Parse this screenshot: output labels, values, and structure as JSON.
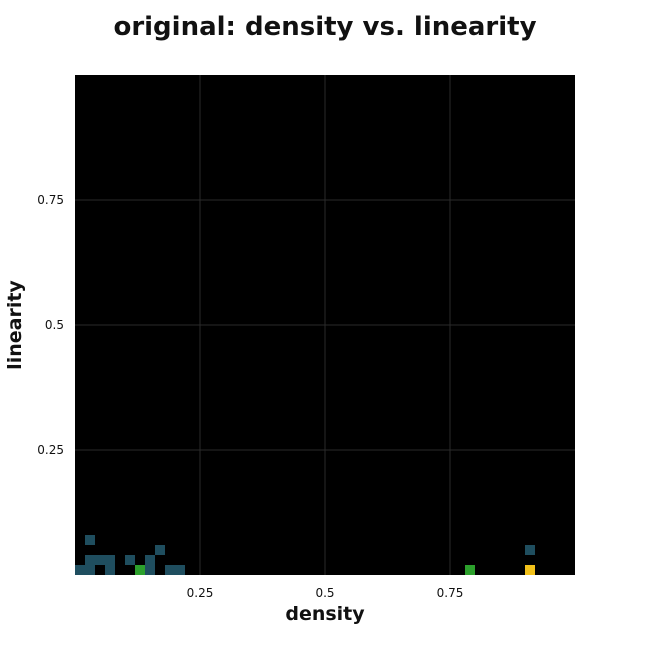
{
  "chart_data": {
    "type": "heatmap",
    "title": "original: density vs. linearity",
    "xlabel": "density",
    "ylabel": "linearity",
    "xlim": [
      0,
      1
    ],
    "ylim": [
      0,
      1
    ],
    "xticks": [
      0.25,
      0.5,
      0.75
    ],
    "xtick_labels": [
      "0.25",
      "0.5",
      "0.75"
    ],
    "yticks": [
      0.25,
      0.5,
      0.75
    ],
    "ytick_labels": [
      "0.25",
      "0.5",
      "0.75"
    ],
    "grid": true,
    "background": "#000000",
    "bin_size": 0.02,
    "colors": {
      "low": "#1f4e5f",
      "mid": "#2ca02c",
      "high": "#f2c11a"
    },
    "cells": [
      {
        "x": 0.0,
        "y": 0.0,
        "level": "low"
      },
      {
        "x": 0.02,
        "y": 0.0,
        "level": "low"
      },
      {
        "x": 0.02,
        "y": 0.02,
        "level": "low"
      },
      {
        "x": 0.02,
        "y": 0.06,
        "level": "low"
      },
      {
        "x": 0.04,
        "y": 0.02,
        "level": "low"
      },
      {
        "x": 0.06,
        "y": 0.0,
        "level": "low"
      },
      {
        "x": 0.06,
        "y": 0.02,
        "level": "low"
      },
      {
        "x": 0.1,
        "y": 0.02,
        "level": "low"
      },
      {
        "x": 0.12,
        "y": 0.0,
        "level": "mid"
      },
      {
        "x": 0.14,
        "y": 0.0,
        "level": "low"
      },
      {
        "x": 0.14,
        "y": 0.02,
        "level": "low"
      },
      {
        "x": 0.16,
        "y": 0.04,
        "level": "low"
      },
      {
        "x": 0.18,
        "y": 0.0,
        "level": "low"
      },
      {
        "x": 0.2,
        "y": 0.0,
        "level": "low"
      },
      {
        "x": 0.78,
        "y": 0.0,
        "level": "mid"
      },
      {
        "x": 0.9,
        "y": 0.0,
        "level": "high"
      },
      {
        "x": 0.9,
        "y": 0.04,
        "level": "low"
      }
    ]
  }
}
